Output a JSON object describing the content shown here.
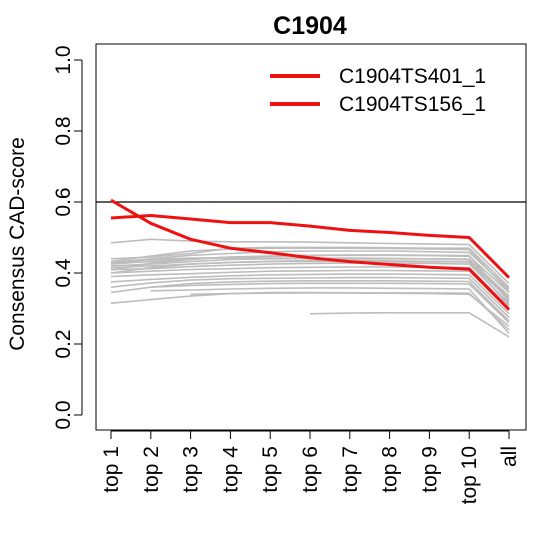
{
  "chart_data": {
    "type": "line",
    "title": "C1904",
    "ylabel": "Consensus CAD-score",
    "xlabel": "",
    "categories": [
      "top 1",
      "top 2",
      "top 3",
      "top 4",
      "top 5",
      "top 6",
      "top 7",
      "top 8",
      "top 9",
      "top 10",
      "all"
    ],
    "ylim": [
      0,
      1
    ],
    "yticks": [
      "0.0",
      "0.2",
      "0.4",
      "0.6",
      "0.8",
      "1.0"
    ],
    "reference_line": 0.6,
    "legend_position": "top-right",
    "highlight_color": "#ee1111",
    "background_color": "#bdbdbd",
    "series": [
      {
        "name": "C1904TS401_1",
        "values": [
          0.555,
          0.562,
          0.552,
          0.542,
          0.542,
          0.532,
          0.52,
          0.514,
          0.506,
          0.5,
          0.387
        ]
      },
      {
        "name": "C1904TS156_1",
        "values": [
          0.605,
          0.54,
          0.495,
          0.47,
          0.457,
          0.443,
          0.432,
          0.424,
          0.416,
          0.411,
          0.297
        ]
      }
    ],
    "background_series": [
      {
        "values": [
          0.485,
          0.495,
          0.49,
          0.488,
          0.488,
          0.487,
          0.485,
          0.483,
          0.482,
          0.48,
          0.37
        ]
      },
      {
        "values": [
          0.43,
          0.44,
          0.45,
          0.455,
          0.46,
          0.462,
          0.462,
          0.462,
          0.46,
          0.458,
          0.355
        ]
      },
      {
        "values": [
          0.425,
          0.433,
          0.44,
          0.445,
          0.447,
          0.449,
          0.45,
          0.45,
          0.449,
          0.447,
          0.345
        ]
      },
      {
        "values": [
          0.42,
          0.425,
          0.432,
          0.438,
          0.44,
          0.441,
          0.442,
          0.441,
          0.44,
          0.438,
          0.335
        ]
      },
      {
        "values": [
          0.415,
          0.42,
          0.425,
          0.43,
          0.433,
          0.435,
          0.435,
          0.434,
          0.433,
          0.432,
          0.325
        ]
      },
      {
        "values": [
          0.41,
          0.412,
          0.418,
          0.422,
          0.425,
          0.427,
          0.428,
          0.428,
          0.427,
          0.425,
          0.315
        ]
      },
      {
        "values": [
          0.4,
          0.405,
          0.41,
          0.412,
          0.415,
          0.416,
          0.417,
          0.417,
          0.416,
          0.415,
          0.305
        ]
      },
      {
        "values": [
          0.39,
          0.395,
          0.398,
          0.402,
          0.405,
          0.406,
          0.407,
          0.407,
          0.406,
          0.405,
          0.295
        ]
      },
      {
        "values": [
          0.375,
          0.382,
          0.388,
          0.392,
          0.395,
          0.396,
          0.397,
          0.397,
          0.396,
          0.395,
          0.285
        ]
      },
      {
        "values": [
          0.36,
          0.372,
          0.38,
          0.384,
          0.385,
          0.386,
          0.387,
          0.387,
          0.386,
          0.385,
          0.275
        ]
      },
      {
        "values": [
          0.345,
          0.36,
          0.37,
          0.375,
          0.377,
          0.378,
          0.378,
          0.378,
          0.377,
          0.376,
          0.265
        ]
      },
      {
        "values": [
          0.315,
          0.325,
          0.335,
          0.342,
          0.345,
          0.345,
          0.344,
          0.343,
          0.342,
          0.34,
          0.25
        ]
      },
      {
        "values": [
          0.44,
          0.445,
          0.455,
          0.47,
          0.472,
          0.472,
          0.472,
          0.471,
          0.47,
          0.47,
          0.36
        ]
      },
      {
        "values": [
          0.432,
          0.448,
          0.462,
          0.468,
          0.47,
          0.47,
          0.47,
          0.469,
          0.468,
          0.466,
          0.348
        ]
      },
      {
        "values": [
          0.428,
          0.438,
          0.442,
          0.442,
          0.442,
          0.441,
          0.44,
          0.44,
          0.44,
          0.439,
          0.33
        ]
      },
      {
        "values": [
          0.408,
          0.428,
          0.438,
          0.445,
          0.448,
          0.45,
          0.451,
          0.451,
          0.45,
          0.449,
          0.32
        ]
      },
      {
        "values": [
          0.4,
          0.415,
          0.425,
          0.43,
          0.432,
          0.433,
          0.433,
          0.433,
          0.432,
          0.431,
          0.31
        ]
      },
      {
        "values": [
          null,
          null,
          0.34,
          0.342,
          0.343,
          0.344,
          0.344,
          0.344,
          0.344,
          0.343,
          0.24
        ]
      },
      {
        "values": [
          null,
          null,
          null,
          null,
          null,
          0.285,
          0.287,
          0.288,
          0.288,
          0.288,
          0.22
        ]
      },
      {
        "values": [
          null,
          0.36,
          0.365,
          0.368,
          0.37,
          0.371,
          0.371,
          0.371,
          0.37,
          0.369,
          0.26
        ]
      },
      {
        "values": [
          null,
          0.35,
          0.352,
          0.355,
          0.357,
          0.358,
          0.358,
          0.357,
          0.356,
          0.355,
          0.23
        ]
      }
    ]
  }
}
